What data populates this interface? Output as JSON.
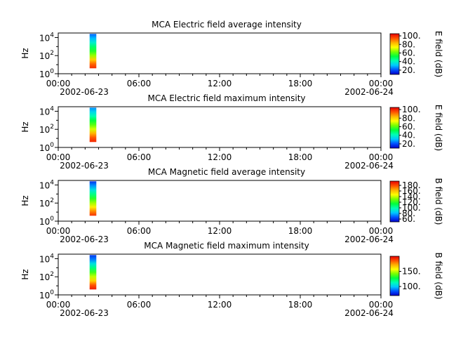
{
  "x_ticks": [
    "00:00",
    "06:00",
    "12:00",
    "18:00",
    "00:00"
  ],
  "x_dates": [
    "2002-06-23",
    "2002-06-24"
  ],
  "y_ticks": [
    "10^0",
    "10^2",
    "10^4"
  ],
  "colors": {
    "colormap": [
      "#0000c8",
      "#0050ff",
      "#00c8ff",
      "#00ffb4",
      "#00ff3c",
      "#78ff00",
      "#ffff00",
      "#ffb400",
      "#ff5000",
      "#e60000"
    ]
  },
  "chart_data": [
    {
      "type": "heatmap",
      "title": "MCA  Electric field average intensity",
      "ylabel": "Hz",
      "colorbar_label": "E field (dB)",
      "colorbar_ticks": [
        "20.",
        "40.",
        "60.",
        "80.",
        "100."
      ],
      "colorbar_range": [
        10,
        105
      ],
      "x_range": [
        "2002-06-23 00:00",
        "2002-06-24 00:00"
      ],
      "y_log_range": [
        0,
        4.5
      ],
      "data_span": {
        "start": "2002-06-23 02:20",
        "end": "2002-06-23 02:50",
        "freq_log_min": 0.6,
        "freq_log_max": 4.4
      },
      "data_profile_low_to_high_freq": [
        99,
        92,
        80,
        65,
        55,
        48,
        38,
        30,
        22
      ]
    },
    {
      "type": "heatmap",
      "title": "MCA  Electric field maximum intensity",
      "ylabel": "Hz",
      "colorbar_label": "E field (dB)",
      "colorbar_ticks": [
        "20.",
        "40.",
        "60.",
        "80.",
        "100."
      ],
      "colorbar_range": [
        10,
        105
      ],
      "x_range": [
        "2002-06-23 00:00",
        "2002-06-24 00:00"
      ],
      "y_log_range": [
        0,
        4.5
      ],
      "data_span": {
        "start": "2002-06-23 02:20",
        "end": "2002-06-23 02:50",
        "freq_log_min": 0.6,
        "freq_log_max": 4.4
      },
      "data_profile_low_to_high_freq": [
        100,
        94,
        84,
        70,
        60,
        52,
        42,
        34,
        26
      ]
    },
    {
      "type": "heatmap",
      "title": "MCA  Magnetic field average intensity",
      "ylabel": "Hz",
      "colorbar_label": "B field (dB)",
      "colorbar_ticks": [
        "60.",
        "80.",
        "100.",
        "120.",
        "140.",
        "160.",
        "180."
      ],
      "colorbar_range": [
        50,
        195
      ],
      "x_range": [
        "2002-06-23 00:00",
        "2002-06-24 00:00"
      ],
      "y_log_range": [
        0,
        4.5
      ],
      "data_span": {
        "start": "2002-06-23 02:20",
        "end": "2002-06-23 02:50",
        "freq_log_min": 0.6,
        "freq_log_max": 4.4
      },
      "data_profile_low_to_high_freq": [
        185,
        170,
        150,
        135,
        120,
        105,
        90,
        75,
        60
      ]
    },
    {
      "type": "heatmap",
      "title": "MCA  Magnetic field maximum intensity",
      "ylabel": "Hz",
      "colorbar_label": "B field (dB)",
      "colorbar_ticks": [
        "100.",
        "150."
      ],
      "colorbar_range": [
        70,
        200
      ],
      "x_range": [
        "2002-06-23 00:00",
        "2002-06-24 00:00"
      ],
      "y_log_range": [
        0,
        4.5
      ],
      "data_span": {
        "start": "2002-06-23 02:20",
        "end": "2002-06-23 02:50",
        "freq_log_min": 0.6,
        "freq_log_max": 4.4
      },
      "data_profile_low_to_high_freq": [
        195,
        185,
        165,
        150,
        135,
        120,
        105,
        90,
        80
      ]
    }
  ]
}
